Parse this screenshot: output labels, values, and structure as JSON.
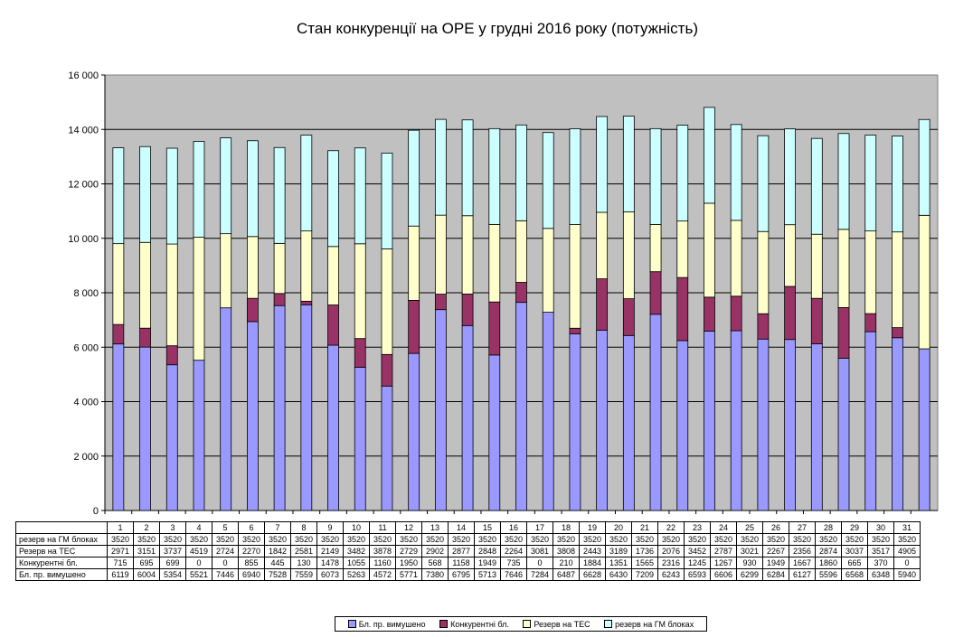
{
  "chart_data": {
    "type": "bar",
    "stacked": true,
    "title": "Стан конкуренції на ОРЕ  у грудні 2016 року (потужність)",
    "categories": [
      "1",
      "2",
      "3",
      "4",
      "5",
      "6",
      "7",
      "8",
      "9",
      "10",
      "11",
      "12",
      "13",
      "14",
      "15",
      "16",
      "17",
      "18",
      "19",
      "20",
      "21",
      "22",
      "23",
      "24",
      "25",
      "26",
      "27",
      "28",
      "29",
      "30",
      "31"
    ],
    "ylim": [
      0,
      16000
    ],
    "yticks": [
      "0",
      "2 000",
      "4 000",
      "6 000",
      "8 000",
      "10 000",
      "12 000",
      "14 000",
      "16 000"
    ],
    "ytick_values": [
      0,
      2000,
      4000,
      6000,
      8000,
      10000,
      12000,
      14000,
      16000
    ],
    "grid": true,
    "legend_position": "bottom",
    "series": [
      {
        "name": "Бл. пр. вимушено",
        "color": "#9999ff",
        "values": [
          6119,
          6004,
          5354,
          5521,
          7446,
          6940,
          7528,
          7559,
          6073,
          5263,
          4572,
          5771,
          7380,
          6795,
          5713,
          7646,
          7284,
          6487,
          6628,
          6430,
          7209,
          6243,
          6593,
          6606,
          6299,
          6284,
          6127,
          5596,
          6568,
          6348,
          5940
        ]
      },
      {
        "name": "Конкурентні бл.",
        "color": "#993366",
        "values": [
          715,
          695,
          699,
          0,
          0,
          855,
          445,
          130,
          1478,
          1055,
          1160,
          1950,
          568,
          1158,
          1949,
          735,
          0,
          210,
          1884,
          1351,
          1565,
          2316,
          1245,
          1267,
          930,
          1949,
          1667,
          1860,
          665,
          370,
          0
        ]
      },
      {
        "name": "Резерв на ТЕС",
        "color": "#ffffcc",
        "values": [
          2971,
          3151,
          3737,
          4519,
          2724,
          2270,
          1842,
          2581,
          2149,
          3482,
          3878,
          2729,
          2902,
          2877,
          2848,
          2264,
          3081,
          3808,
          2443,
          3189,
          1736,
          2076,
          3452,
          2787,
          3021,
          2267,
          2356,
          2874,
          3037,
          3517,
          4905
        ]
      },
      {
        "name": "резерв на ГМ блоках",
        "color": "#ccffff",
        "values": [
          3520,
          3520,
          3520,
          3520,
          3520,
          3520,
          3520,
          3520,
          3520,
          3520,
          3520,
          3520,
          3520,
          3520,
          3520,
          3520,
          3520,
          3520,
          3520,
          3520,
          3520,
          3520,
          3520,
          3520,
          3520,
          3520,
          3520,
          3520,
          3520,
          3520,
          3520
        ]
      }
    ],
    "table_rows": [
      {
        "label": "резерв на ГМ блоках",
        "series_index": 3
      },
      {
        "label": "Резерв на ТЕС",
        "series_index": 2
      },
      {
        "label": "Конкурентні бл.",
        "series_index": 1
      },
      {
        "label": "Бл. пр. вимушено",
        "series_index": 0
      }
    ],
    "legend": [
      "Бл. пр. вимушено",
      "Конкурентні бл.",
      "Резерв на ТЕС",
      "резерв на ГМ блоках"
    ],
    "plot_background": "#c0c0c0"
  }
}
